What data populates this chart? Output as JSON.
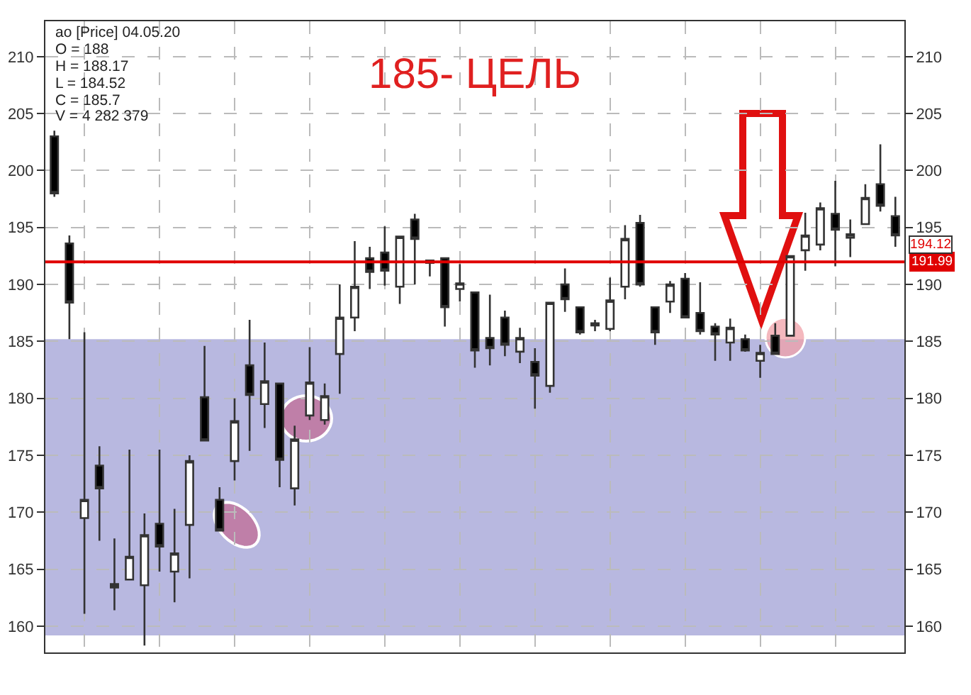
{
  "chart_data": {
    "type": "candlestick",
    "title": "185- ЦЕЛЬ",
    "categories": [
      null,
      null,
      null,
      null,
      null,
      null,
      null,
      null,
      null,
      null,
      null,
      null,
      null,
      null,
      null,
      null,
      null,
      null,
      null,
      null,
      null,
      null,
      null,
      null,
      null,
      null,
      null,
      null,
      null,
      null,
      null,
      null,
      null,
      null,
      null,
      null,
      null,
      null,
      null,
      null,
      null,
      null,
      null,
      null,
      null,
      null,
      null,
      null,
      null,
      null,
      null,
      null,
      null,
      null,
      null,
      null,
      null
    ],
    "ohlc": [
      [
        203.0,
        203.5,
        197.7,
        198.0
      ],
      [
        193.6,
        194.3,
        185.2,
        188.4
      ],
      [
        169.5,
        185.8,
        161.1,
        171.1
      ],
      [
        174.1,
        175.8,
        167.5,
        172.1
      ],
      [
        163.4,
        167.7,
        161.4,
        163.7
      ],
      [
        164.1,
        175.5,
        164.1,
        166.1
      ],
      [
        163.6,
        169.9,
        158.3,
        168.0
      ],
      [
        169.0,
        175.5,
        164.8,
        167.0
      ],
      [
        164.8,
        170.3,
        162.1,
        166.4
      ],
      [
        168.9,
        175.0,
        164.2,
        174.5
      ],
      [
        180.1,
        184.6,
        176.3,
        176.3
      ],
      [
        171.1,
        172.2,
        168.4,
        168.4
      ],
      [
        174.5,
        180.0,
        172.8,
        178.0
      ],
      [
        182.9,
        186.9,
        175.4,
        180.3
      ],
      [
        179.5,
        184.9,
        177.4,
        181.5
      ],
      [
        181.3,
        181.3,
        172.2,
        174.6
      ],
      [
        172.1,
        177.6,
        170.6,
        176.4
      ],
      [
        178.5,
        184.5,
        178.1,
        181.4
      ],
      [
        178.1,
        181.3,
        177.7,
        180.2
      ],
      [
        183.9,
        190.0,
        180.4,
        187.1
      ],
      [
        187.1,
        193.8,
        185.9,
        189.8
      ],
      [
        192.3,
        193.3,
        189.6,
        191.1
      ],
      [
        192.8,
        195.1,
        189.9,
        191.2
      ],
      [
        189.8,
        194.2,
        188.3,
        194.2
      ],
      [
        195.7,
        196.2,
        190.0,
        194.0
      ],
      [
        192.1,
        192.1,
        190.7,
        191.9
      ],
      [
        192.3,
        192.3,
        186.3,
        188.0
      ],
      [
        189.6,
        191.8,
        188.5,
        190.1
      ],
      [
        189.3,
        189.3,
        182.7,
        184.2
      ],
      [
        185.3,
        189.1,
        182.9,
        184.4
      ],
      [
        187.1,
        187.7,
        183.7,
        184.7
      ],
      [
        184.1,
        186.2,
        183.1,
        185.3
      ],
      [
        183.2,
        184.4,
        179.1,
        182.0
      ],
      [
        181.1,
        188.4,
        180.5,
        188.4
      ],
      [
        190.0,
        191.4,
        187.6,
        188.7
      ],
      [
        188.0,
        188.0,
        185.6,
        185.8
      ],
      [
        186.6,
        186.9,
        185.9,
        186.4
      ],
      [
        186.1,
        190.6,
        185.9,
        188.6
      ],
      [
        189.8,
        195.2,
        188.7,
        194.0
      ],
      [
        195.4,
        196.1,
        189.8,
        190.0
      ],
      [
        188.0,
        188.0,
        184.7,
        185.8
      ],
      [
        188.5,
        190.3,
        187.5,
        190.0
      ],
      [
        190.5,
        191.0,
        187.1,
        187.1
      ],
      [
        187.5,
        190.2,
        185.6,
        185.9
      ],
      [
        186.3,
        186.6,
        183.3,
        185.6
      ],
      [
        184.9,
        187.0,
        183.3,
        186.2
      ],
      [
        185.2,
        185.6,
        184.1,
        184.2
      ],
      [
        183.3,
        184.7,
        181.8,
        184.0
      ],
      [
        185.5,
        186.6,
        183.9,
        183.9
      ],
      [
        185.5,
        192.5,
        185.5,
        192.5
      ],
      [
        193.0,
        196.3,
        191.2,
        194.3
      ],
      [
        193.5,
        197.2,
        193.0,
        196.7
      ],
      [
        196.2,
        199.1,
        191.6,
        194.8
      ],
      [
        194.1,
        195.7,
        192.4,
        194.4
      ],
      [
        195.3,
        198.8,
        195.3,
        197.6
      ],
      [
        198.8,
        202.3,
        196.4,
        196.9
      ],
      [
        196.0,
        197.7,
        193.3,
        194.3
      ]
    ],
    "ylim": [
      157.7,
      213.1
    ],
    "yticks": [
      160,
      165,
      170,
      175,
      180,
      185,
      190,
      195,
      200,
      205,
      210
    ],
    "y2lim": [
      157.7,
      213.1
    ],
    "y2ticks": [
      160,
      165,
      170,
      175,
      180,
      185,
      190,
      195,
      200,
      205,
      210
    ],
    "ref_lines": [
      {
        "axis": "y2",
        "value": 191.99,
        "label": "191.99",
        "color": "#e00000"
      }
    ],
    "bands": [
      {
        "axis": "y",
        "from": 159.2,
        "to": 185.2,
        "color": "#b8b8e0"
      }
    ],
    "annotations": [
      "ао [Price] 04.05.20",
      "O = 188",
      "H = 188.17",
      "L = 184.52",
      "C = 185.7",
      "V = 4 282 379",
      "194.12"
    ],
    "grid": true
  }
}
